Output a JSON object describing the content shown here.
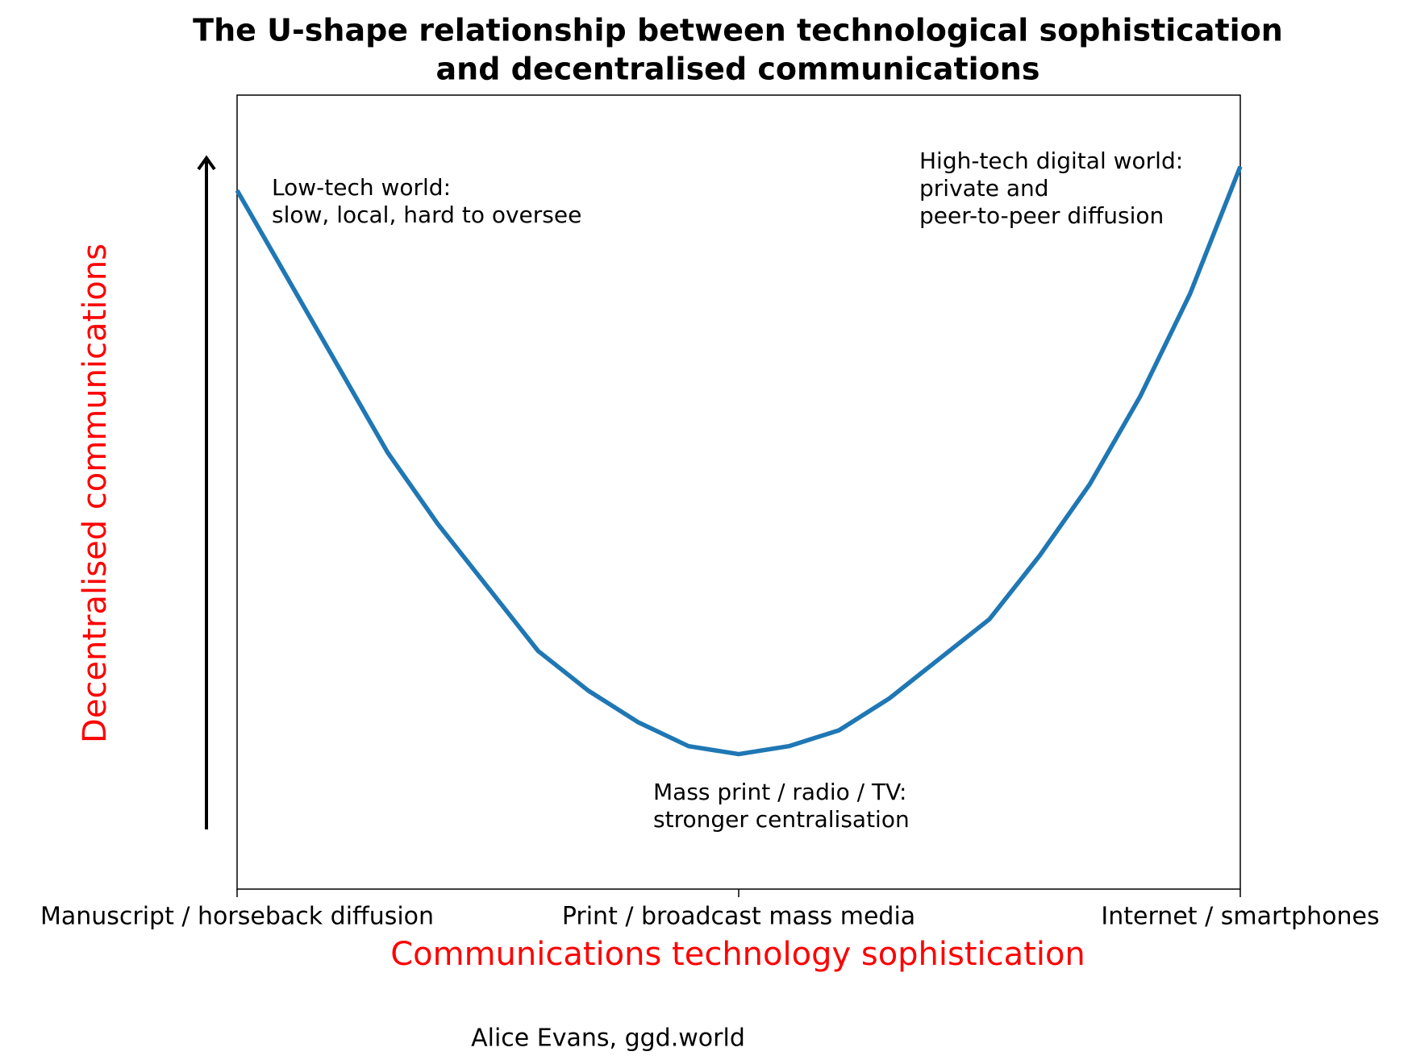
{
  "chart_data": {
    "type": "line",
    "title": [
      "The U-shape relationship between technological sophistication",
      "and decentralised communications"
    ],
    "x_label": "Communications technology sophistication",
    "y_label": "Decentralised communications",
    "source": "Alice Evans, ggd.world",
    "x": [
      0,
      0.05,
      0.1,
      0.15,
      0.2,
      0.25,
      0.3,
      0.35,
      0.4,
      0.45,
      0.5,
      0.55,
      0.6,
      0.65,
      0.7,
      0.75,
      0.8,
      0.85,
      0.9,
      0.95,
      1
    ],
    "series": [
      {
        "color": "#1f77b4",
        "values": [
          0.88,
          0.77,
          0.66,
          0.55,
          0.46,
          0.38,
          0.3,
          0.25,
          0.21,
          0.18,
          0.17,
          0.18,
          0.2,
          0.24,
          0.29,
          0.34,
          0.42,
          0.51,
          0.62,
          0.75,
          0.91
        ]
      }
    ],
    "xlim": [
      0,
      1
    ],
    "ylim": [
      0,
      1
    ],
    "xticks": [
      {
        "value": 0,
        "label": "Manuscript / horseback diffusion"
      },
      {
        "value": 0.5,
        "label": "Print / broadcast mass media"
      },
      {
        "value": 1,
        "label": "Internet / smartphones"
      }
    ],
    "annotations": [
      {
        "lines": [
          "Low-tech world:",
          "slow, local, hard to oversee"
        ]
      },
      {
        "lines": [
          "High-tech digital world:",
          "private and",
          "peer-to-peer diffusion"
        ]
      },
      {
        "lines": [
          "Mass print / radio / TV:",
          "stronger centralisation"
        ]
      }
    ]
  }
}
